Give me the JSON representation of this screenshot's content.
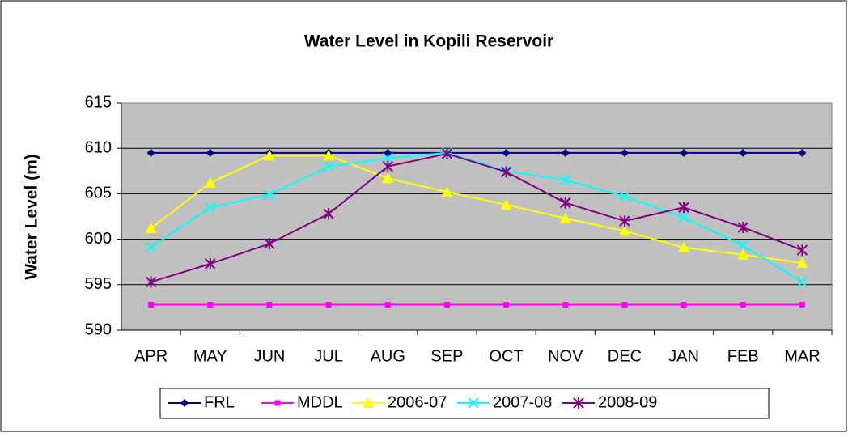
{
  "chart_data": {
    "type": "line",
    "title": "Water Level in Kopili Reservoir",
    "y_label": "Water Level (m)",
    "categories": [
      "APR",
      "MAY",
      "JUN",
      "JUL",
      "AUG",
      "SEP",
      "OCT",
      "NOV",
      "DEC",
      "JAN",
      "FEB",
      "MAR"
    ],
    "ylim": [
      590,
      615
    ],
    "yticks": [
      590,
      595,
      600,
      605,
      610,
      615
    ],
    "grid": true,
    "legend": "bottom",
    "series": [
      {
        "name": "FRL",
        "color": "#000080",
        "marker": "diamond",
        "values": [
          609.5,
          609.5,
          609.5,
          609.5,
          609.5,
          609.5,
          609.5,
          609.5,
          609.5,
          609.5,
          609.5,
          609.5
        ]
      },
      {
        "name": "MDDL",
        "color": "#ff00ff",
        "marker": "square",
        "values": [
          592.8,
          592.8,
          592.8,
          592.8,
          592.8,
          592.8,
          592.8,
          592.8,
          592.8,
          592.8,
          592.8,
          592.8
        ]
      },
      {
        "name": "2006-07",
        "color": "#ffff00",
        "marker": "triangle",
        "values": [
          601.2,
          606.2,
          609.2,
          609.2,
          606.7,
          605.2,
          603.8,
          602.3,
          600.9,
          599.1,
          598.3,
          597.4
        ]
      },
      {
        "name": "2007-08",
        "color": "#00ffff",
        "marker": "x",
        "values": [
          599.1,
          603.5,
          604.9,
          608.0,
          608.9,
          609.5,
          607.5,
          606.5,
          604.7,
          602.4,
          599.3,
          595.3
        ]
      },
      {
        "name": "2008-09",
        "color": "#800080",
        "marker": "star",
        "values": [
          595.3,
          597.3,
          599.5,
          602.8,
          608.0,
          609.4,
          607.4,
          604.0,
          602.0,
          603.5,
          601.3,
          598.8
        ]
      }
    ]
  }
}
